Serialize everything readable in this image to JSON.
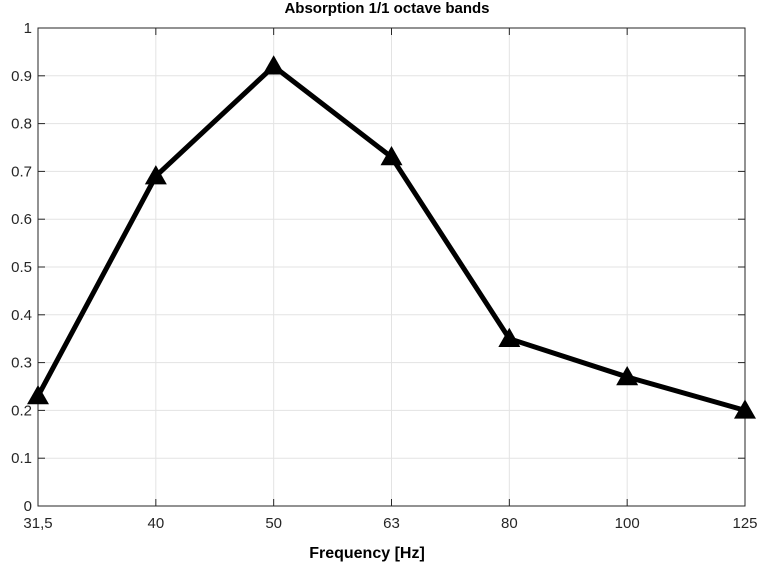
{
  "chart_data": {
    "type": "line",
    "title": "Absorption 1/1 octave bands",
    "xlabel": "Frequency [Hz]",
    "ylabel": "",
    "categories": [
      "31,5",
      "40",
      "50",
      "63",
      "80",
      "100",
      "125"
    ],
    "series": [
      {
        "name": "Absorption",
        "marker": "triangle",
        "color": "#000000",
        "values": [
          0.23,
          0.69,
          0.92,
          0.73,
          0.35,
          0.27,
          0.2
        ]
      }
    ],
    "ylim": [
      0,
      1
    ],
    "yticks": [
      "0",
      "0.1",
      "0.2",
      "0.3",
      "0.4",
      "0.5",
      "0.6",
      "0.7",
      "0.8",
      "0.9",
      "1"
    ],
    "grid": true
  }
}
